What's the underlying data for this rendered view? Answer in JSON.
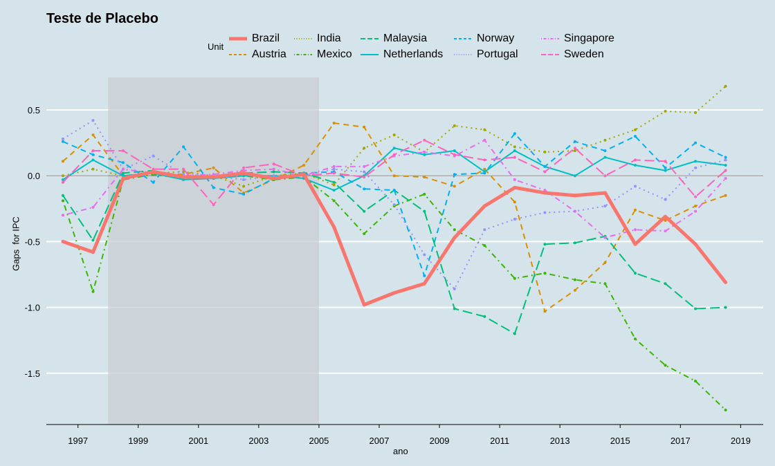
{
  "chart_data": {
    "type": "line",
    "title": "Teste de Placebo",
    "xlabel": "ano",
    "ylabel": "Gaps  for IPC",
    "legend_title": "Unit",
    "legend_position": "top",
    "xlim": [
      1995.95,
      2019.75
    ],
    "ylim": [
      -1.89,
      0.81
    ],
    "x_ticks": [
      1997,
      1999,
      2001,
      2003,
      2005,
      2007,
      2009,
      2011,
      2013,
      2015,
      2017,
      2019
    ],
    "y_ticks": [
      0.5,
      0.0,
      -0.5,
      -1.0,
      -1.5
    ],
    "y_tick_labels": [
      "0.5",
      "0.0",
      "-0.5",
      "-1.0",
      "-1.5"
    ],
    "grid": "horizontal",
    "shaded_period": [
      1998,
      2005
    ],
    "reference_line": 0,
    "x": [
      1996.5,
      1997.5,
      1998.5,
      1999.5,
      2000.5,
      2001.5,
      2002.5,
      2003.5,
      2004.5,
      2005.5,
      2006.5,
      2007.5,
      2008.5,
      2009.5,
      2010.5,
      2011.5,
      2012.5,
      2013.5,
      2014.5,
      2015.5,
      2016.5,
      2017.5,
      2018.5
    ],
    "series": [
      {
        "name": "Brazil",
        "color": "#F8766D",
        "dash": "solid",
        "values": [
          -0.5,
          -0.58,
          -0.02,
          0.03,
          -0.01,
          -0.01,
          0.02,
          -0.02,
          0.01,
          -0.39,
          -0.98,
          -0.89,
          -0.82,
          -0.47,
          -0.23,
          -0.09,
          -0.13,
          -0.15,
          -0.13,
          -0.52,
          -0.31,
          -0.52,
          -0.81
        ]
      },
      {
        "name": "Austria",
        "color": "#D89000",
        "dash": "dashed",
        "values": [
          0.11,
          0.31,
          0.0,
          0.02,
          0.01,
          0.06,
          -0.13,
          -0.03,
          0.08,
          0.4,
          0.37,
          0.0,
          -0.01,
          -0.08,
          0.05,
          -0.2,
          -1.03,
          -0.87,
          -0.66,
          -0.26,
          -0.34,
          -0.23,
          -0.15
        ]
      },
      {
        "name": "India",
        "color": "#A3A500",
        "dash": "dotted",
        "values": [
          0.0,
          0.05,
          0.0,
          0.02,
          0.03,
          0.0,
          -0.08,
          0.0,
          0.02,
          -0.07,
          0.21,
          0.31,
          0.18,
          0.38,
          0.35,
          0.22,
          0.18,
          0.19,
          0.27,
          0.35,
          0.49,
          0.48,
          0.68
        ]
      },
      {
        "name": "Mexico",
        "color": "#39B600",
        "dash": "dotdash",
        "values": [
          -0.19,
          -0.88,
          -0.03,
          0.01,
          -0.02,
          -0.02,
          0.0,
          -0.03,
          -0.01,
          -0.19,
          -0.44,
          -0.23,
          -0.14,
          -0.41,
          -0.53,
          -0.78,
          -0.74,
          -0.79,
          -0.82,
          -1.24,
          -1.44,
          -1.56,
          -1.78
        ]
      },
      {
        "name": "Malaysia",
        "color": "#00BF7D",
        "dash": "longdash",
        "values": [
          -0.15,
          -0.49,
          0.02,
          0.04,
          -0.02,
          -0.02,
          0.02,
          0.03,
          0.02,
          -0.05,
          -0.27,
          -0.11,
          -0.27,
          -1.01,
          -1.07,
          -1.2,
          -0.52,
          -0.51,
          -0.46,
          -0.74,
          -0.82,
          -1.01,
          -1.0
        ]
      },
      {
        "name": "Netherlands",
        "color": "#00BFC4",
        "dash": "solid",
        "values": [
          -0.03,
          0.12,
          0.0,
          0.02,
          -0.03,
          -0.02,
          0.0,
          0.0,
          -0.02,
          -0.11,
          0.0,
          0.21,
          0.16,
          0.19,
          0.03,
          0.19,
          0.07,
          0.0,
          0.14,
          0.08,
          0.04,
          0.11,
          0.08
        ]
      },
      {
        "name": "Norway",
        "color": "#00B0F6",
        "dash": "dashed",
        "values": [
          0.26,
          0.16,
          0.1,
          -0.05,
          0.22,
          -0.09,
          -0.14,
          -0.02,
          0.02,
          0.03,
          -0.1,
          -0.11,
          -0.76,
          0.01,
          0.02,
          0.32,
          0.07,
          0.26,
          0.19,
          0.3,
          0.06,
          0.25,
          0.14
        ]
      },
      {
        "name": "Portugal",
        "color": "#9590FF",
        "dash": "dotted",
        "values": [
          0.28,
          0.42,
          0.05,
          0.15,
          0.01,
          0.0,
          -0.03,
          0.0,
          0.0,
          0.05,
          0.03,
          -0.22,
          -0.6,
          -0.86,
          -0.41,
          -0.33,
          -0.28,
          -0.27,
          -0.23,
          -0.08,
          -0.18,
          0.06,
          0.12
        ]
      },
      {
        "name": "Singapore",
        "color": "#E76BF3",
        "dash": "dotdash",
        "values": [
          -0.3,
          -0.24,
          0.05,
          0.02,
          0.0,
          0.01,
          0.04,
          0.05,
          0.0,
          0.07,
          0.07,
          0.15,
          0.18,
          0.15,
          0.27,
          -0.03,
          -0.11,
          -0.27,
          -0.47,
          -0.41,
          -0.42,
          -0.27,
          -0.02
        ]
      },
      {
        "name": "Sweden",
        "color": "#FF62BC",
        "dash": "longdash",
        "values": [
          -0.05,
          0.19,
          0.19,
          0.05,
          0.05,
          -0.22,
          0.06,
          0.09,
          0.0,
          0.02,
          -0.01,
          0.16,
          0.27,
          0.16,
          0.12,
          0.14,
          0.03,
          0.21,
          0.0,
          0.12,
          0.11,
          -0.16,
          0.04
        ]
      }
    ]
  }
}
